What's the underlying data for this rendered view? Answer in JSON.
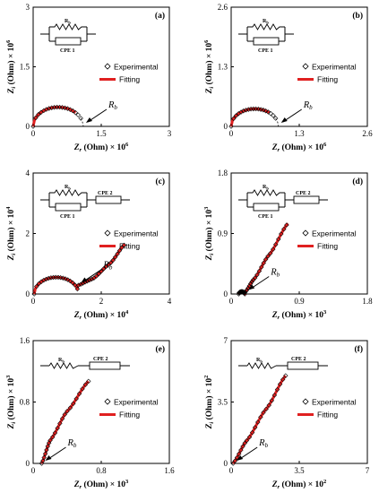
{
  "colors": {
    "fit": "#e02020",
    "marker": "#000000",
    "axis": "#000000"
  },
  "chart_data": [
    {
      "type": "scatter",
      "panel": "(a)",
      "xlabel": "Z_r (Ohm) × 10^6",
      "ylabel": "Z_i (Ohm) × 10^6",
      "xlabel_main": "Z",
      "xlabel_sub": "r",
      "xlabel_tail": " (Ohm) × 10",
      "xlabel_exp": "6",
      "ylabel_main": "Z",
      "ylabel_sub": "i",
      "ylabel_tail": " (Ohm) × 10",
      "ylabel_exp": "6",
      "xlim": [
        0,
        3
      ],
      "ylim": [
        0,
        3
      ],
      "xticks": [
        "0",
        "1.5",
        "3"
      ],
      "yticks": [
        "0",
        "1.5",
        "3"
      ],
      "legend": [
        "Experimental",
        "Fitting"
      ],
      "legend_position": "right",
      "circuit": "parallel",
      "cpe1": "CPE 1",
      "rb_circuit": "R_b",
      "cpe2": "",
      "rb_annotation": "R_b",
      "arc": {
        "center": 0.55,
        "radius": 0.55,
        "ymax_fraction": 0.88
      },
      "experimental_end": 1.05,
      "fit_end": 0.95,
      "tail": null
    },
    {
      "type": "scatter",
      "panel": "(b)",
      "xlabel": "Z_r (Ohm) × 10^6",
      "ylabel": "Z_i (Ohm) × 10^6",
      "xlabel_main": "Z",
      "xlabel_sub": "r",
      "xlabel_tail": " (Ohm) × 10",
      "xlabel_exp": "6",
      "ylabel_main": "Z",
      "ylabel_sub": "i",
      "ylabel_tail": " (Ohm) × 10",
      "ylabel_exp": "6",
      "xlim": [
        0,
        2.6
      ],
      "ylim": [
        0,
        2.6
      ],
      "xticks": [
        "0",
        "1.3",
        "2.6"
      ],
      "yticks": [
        "0",
        "1.3",
        "2.6"
      ],
      "legend": [
        "Experimental",
        "Fitting"
      ],
      "legend_position": "right",
      "circuit": "parallel",
      "cpe1": "CPE 1",
      "rb_circuit": "R_b",
      "cpe2": "",
      "rb_annotation": "R_b",
      "arc": {
        "center": 0.45,
        "radius": 0.45,
        "ymax_fraction": 0.85
      },
      "experimental_end": 0.85,
      "fit_end": 0.75,
      "tail": null
    },
    {
      "type": "scatter",
      "panel": "(c)",
      "xlabel": "Z_r (Ohm) × 10^4",
      "ylabel": "Z_i (Ohm) × 10^4",
      "xlabel_main": "Z",
      "xlabel_sub": "r",
      "xlabel_tail": " (Ohm) × 10",
      "xlabel_exp": "4",
      "ylabel_main": "Z",
      "ylabel_sub": "i",
      "ylabel_tail": " (Ohm) × 10",
      "ylabel_exp": "4",
      "xlim": [
        0,
        4
      ],
      "ylim": [
        0,
        4
      ],
      "xticks": [
        "0",
        "2",
        "4"
      ],
      "yticks": [
        "0",
        "2",
        "4"
      ],
      "legend": [
        "Experimental",
        "Fitting"
      ],
      "legend_position": "right",
      "circuit": "parallel-cpe",
      "cpe1": "CPE 1",
      "rb_circuit": "R_b",
      "cpe2": "CPE 2",
      "rb_annotation": "R_b",
      "arc": {
        "center": 0.68,
        "radius": 0.65,
        "ymax_fraction": 0.85
      },
      "experimental_end": 1.3,
      "fit_end": 1.3,
      "tail": [
        [
          1.3,
          0.28
        ],
        [
          1.75,
          0.5
        ],
        [
          2.25,
          1.0
        ],
        [
          2.7,
          1.65
        ]
      ]
    },
    {
      "type": "scatter",
      "panel": "(d)",
      "xlabel": "Z_r (Ohm) × 10^3",
      "ylabel": "Z_i (Ohm) × 10^3",
      "xlabel_main": "Z",
      "xlabel_sub": "r",
      "xlabel_tail": " (Ohm) × 10",
      "xlabel_exp": "3",
      "ylabel_main": "Z",
      "ylabel_sub": "i",
      "ylabel_tail": " (Ohm) × 10",
      "ylabel_exp": "3",
      "xlim": [
        0,
        1.8
      ],
      "ylim": [
        0,
        1.8
      ],
      "xticks": [
        "0",
        "0.9",
        "1.8"
      ],
      "yticks": [
        "0",
        "0.9",
        "1.8"
      ],
      "legend": [
        "Experimental",
        "Fitting"
      ],
      "legend_position": "right",
      "circuit": "parallel-cpe",
      "cpe1": "CPE 1",
      "rb_circuit": "R_b",
      "cpe2": "CPE 2",
      "rb_annotation": "R_b",
      "arc": {
        "center": 0.14,
        "radius": 0.04,
        "ymax_fraction": 0.9
      },
      "experimental_end": 0.18,
      "fit_end": 0.18,
      "tail": [
        [
          0.18,
          0.02
        ],
        [
          0.3,
          0.22
        ],
        [
          0.5,
          0.58
        ],
        [
          0.75,
          1.05
        ]
      ]
    },
    {
      "type": "scatter",
      "panel": "(e)",
      "xlabel": "Z_r (Ohm) × 10^3",
      "ylabel": "Z_i (Ohm) × 10^3",
      "xlabel_main": "Z",
      "xlabel_sub": "r",
      "xlabel_tail": " (Ohm) × 10",
      "xlabel_exp": "3",
      "ylabel_main": "Z",
      "ylabel_sub": "i",
      "ylabel_tail": " (Ohm) × 10",
      "ylabel_exp": "3",
      "xlim": [
        0,
        1.6
      ],
      "ylim": [
        0,
        1.6
      ],
      "xticks": [
        "0",
        "0.8",
        "1.6"
      ],
      "yticks": [
        "0",
        "0.8",
        "1.6"
      ],
      "legend": [
        "Experimental",
        "Fitting"
      ],
      "legend_position": "right",
      "circuit": "series",
      "cpe1": "",
      "rb_circuit": "R_b",
      "cpe2": "CPE 2",
      "rb_annotation": "R_b",
      "arc": null,
      "experimental_end": 0,
      "fit_end": 0,
      "tail": [
        [
          0.1,
          0.0
        ],
        [
          0.2,
          0.3
        ],
        [
          0.4,
          0.68
        ],
        [
          0.65,
          1.07
        ]
      ]
    },
    {
      "type": "scatter",
      "panel": "(f)",
      "xlabel": "Z_r (Ohm) × 10^2",
      "ylabel": "Z_i (Ohm) × 10^2",
      "xlabel_main": "Z",
      "xlabel_sub": "r",
      "xlabel_tail": " (Ohm) × 10",
      "xlabel_exp": "2",
      "ylabel_main": "Z",
      "ylabel_sub": "i",
      "ylabel_tail": " (Ohm) × 10",
      "ylabel_exp": "2",
      "xlim": [
        0,
        7
      ],
      "ylim": [
        0,
        7
      ],
      "xticks": [
        "0",
        "3.5",
        "7"
      ],
      "yticks": [
        "0",
        "3.5",
        "7"
      ],
      "legend": [
        "Experimental",
        "Fitting"
      ],
      "legend_position": "right",
      "circuit": "series",
      "cpe1": "",
      "rb_circuit": "R_b",
      "cpe2": "CPE 2",
      "rb_annotation": "R_b",
      "arc": null,
      "experimental_end": 0,
      "fit_end": 0,
      "tail": [
        [
          0.1,
          0.0
        ],
        [
          0.8,
          1.3
        ],
        [
          1.8,
          3.1
        ],
        [
          2.8,
          5.0
        ]
      ]
    }
  ]
}
